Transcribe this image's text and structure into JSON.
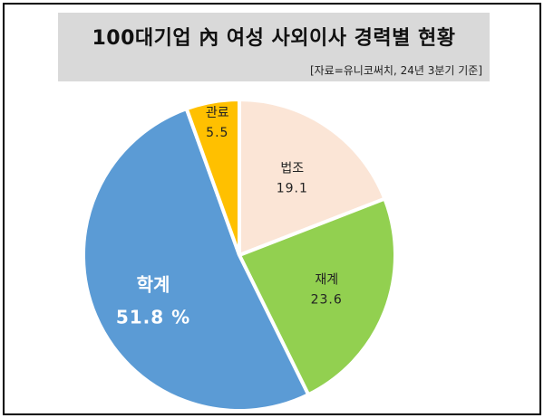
{
  "chart_data": {
    "type": "pie",
    "title": "100대기업 內 여성 사외이사 경력별 현황",
    "subtitle": "[자료=유니코써치, 24년 3분기 기준]",
    "unit": "%",
    "slices": [
      {
        "label": "법조",
        "value": 19.1,
        "value_text": "19.1",
        "color": "#fbe5d6"
      },
      {
        "label": "재계",
        "value": 23.6,
        "value_text": "23.6",
        "color": "#92d050"
      },
      {
        "label": "학계",
        "value": 51.8,
        "value_text": "51.8 %",
        "color": "#5b9bd5"
      },
      {
        "label": "관료",
        "value": 5.5,
        "value_text": "5.5",
        "color": "#ffc000"
      }
    ]
  }
}
